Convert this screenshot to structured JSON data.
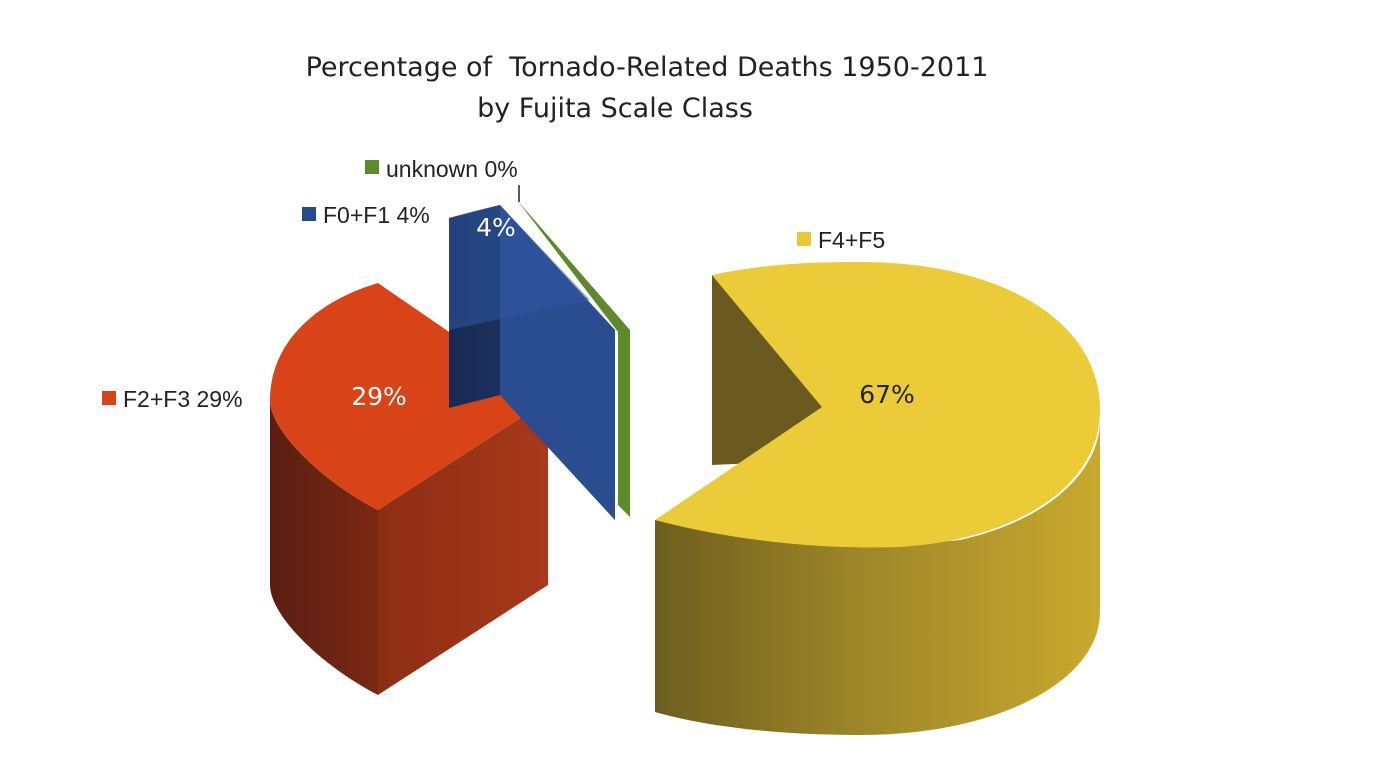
{
  "chart_data": {
    "type": "pie",
    "title_lines": [
      "Percentage of  Tornado-Related Deaths 1950-2011",
      "by Fujita Scale Class"
    ],
    "slices": [
      {
        "label": "F4+F5",
        "legend_text": "F4+F5",
        "value": 67,
        "value_label": "67%",
        "color": "#e8c834"
      },
      {
        "label": "F2+F3",
        "legend_text": "F2+F3 29%",
        "value": 29,
        "value_label": "29%",
        "color": "#d84418"
      },
      {
        "label": "F0+F1",
        "legend_text": "F0+F1 4%",
        "value": 4,
        "value_label": "4%",
        "color": "#264b8c"
      },
      {
        "label": "unknown",
        "legend_text": "unknown 0%",
        "value": 0,
        "value_label": "",
        "color": "#5e8a2c"
      }
    ]
  }
}
